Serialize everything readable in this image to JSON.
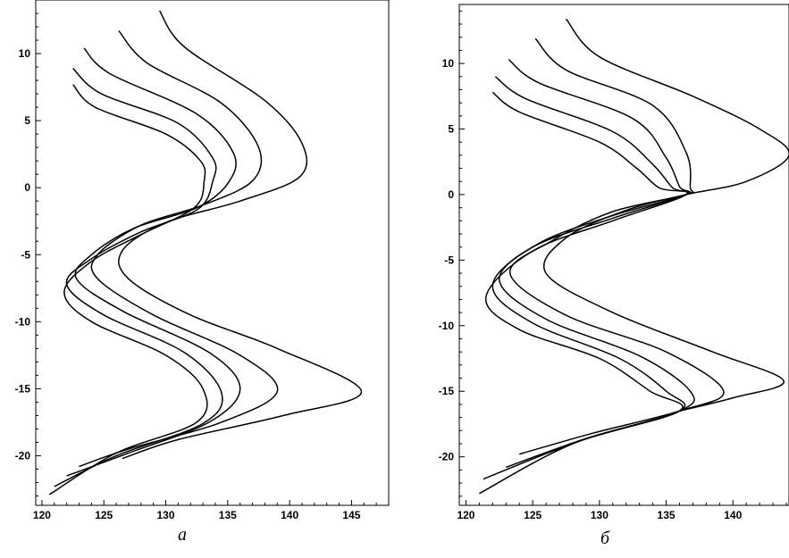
{
  "chart_data": [
    {
      "type": "line",
      "caption": "a",
      "xlim": [
        119.5,
        148
      ],
      "ylim": [
        -23.7,
        14
      ],
      "xticks": [
        120,
        125,
        130,
        135,
        140,
        145
      ],
      "yticks": [
        10,
        5,
        0,
        -5,
        -10,
        -15,
        -20
      ],
      "xtick_labels": [
        "120",
        "125",
        "130",
        "135",
        "140",
        "145"
      ],
      "ytick_labels": [
        "10",
        "5",
        "0",
        "-5",
        "-10",
        "-15",
        "-20"
      ],
      "grid": false,
      "series": [
        {
          "points": [
            [
              122.5,
              7.7
            ],
            [
              124.3,
              6.0
            ],
            [
              130.0,
              4.0
            ],
            [
              132.8,
              2.0
            ],
            [
              133.1,
              0.5
            ],
            [
              132.3,
              -1.5
            ],
            [
              128.0,
              -3.5
            ],
            [
              124.0,
              -5.5
            ],
            [
              121.8,
              -7.8
            ],
            [
              124.0,
              -10.0
            ],
            [
              130.0,
              -12.5
            ],
            [
              133.0,
              -15.0
            ],
            [
              132.5,
              -17.5
            ],
            [
              126.0,
              -19.8
            ],
            [
              120.6,
              -22.9
            ]
          ]
        },
        {
          "points": [
            [
              122.5,
              8.9
            ],
            [
              124.8,
              7.0
            ],
            [
              131.0,
              4.8
            ],
            [
              133.8,
              2.2
            ],
            [
              133.8,
              0.5
            ],
            [
              132.6,
              -1.6
            ],
            [
              128.0,
              -3.3
            ],
            [
              124.0,
              -5.3
            ],
            [
              122.0,
              -7.2
            ],
            [
              125.0,
              -9.5
            ],
            [
              131.5,
              -12.3
            ],
            [
              134.5,
              -15.3
            ],
            [
              133.0,
              -17.6
            ],
            [
              126.0,
              -20.0
            ],
            [
              121.0,
              -22.3
            ]
          ]
        },
        {
          "points": [
            [
              123.4,
              10.4
            ],
            [
              125.5,
              8.5
            ],
            [
              132.5,
              5.5
            ],
            [
              135.5,
              2.5
            ],
            [
              135.0,
              0.3
            ],
            [
              132.5,
              -1.5
            ],
            [
              127.5,
              -3.0
            ],
            [
              124.0,
              -5.0
            ],
            [
              122.8,
              -6.8
            ],
            [
              126.5,
              -9.2
            ],
            [
              133.5,
              -12.3
            ],
            [
              136.0,
              -15.0
            ],
            [
              133.5,
              -17.5
            ],
            [
              127.0,
              -19.8
            ],
            [
              122.0,
              -21.5
            ]
          ]
        },
        {
          "points": [
            [
              126.2,
              11.7
            ],
            [
              128.5,
              9.3
            ],
            [
              134.5,
              6.3
            ],
            [
              137.5,
              3.0
            ],
            [
              137.0,
              0.5
            ],
            [
              133.0,
              -1.3
            ],
            [
              128.0,
              -2.8
            ],
            [
              124.5,
              -5.0
            ],
            [
              124.5,
              -6.8
            ],
            [
              129.0,
              -9.5
            ],
            [
              136.0,
              -12.5
            ],
            [
              139.0,
              -15.2
            ],
            [
              134.5,
              -17.5
            ],
            [
              127.0,
              -19.5
            ],
            [
              123.0,
              -20.8
            ]
          ]
        },
        {
          "points": [
            [
              129.5,
              13.2
            ],
            [
              131.5,
              10.5
            ],
            [
              138.0,
              6.5
            ],
            [
              141.0,
              3.3
            ],
            [
              140.8,
              0.8
            ],
            [
              136.0,
              -1.0
            ],
            [
              130.0,
              -2.6
            ],
            [
              126.5,
              -4.7
            ],
            [
              127.0,
              -6.8
            ],
            [
              132.0,
              -9.5
            ],
            [
              139.0,
              -12.0
            ],
            [
              145.8,
              -15.2
            ],
            [
              139.5,
              -17.0
            ],
            [
              131.0,
              -18.8
            ],
            [
              126.5,
              -20.2
            ]
          ]
        }
      ]
    },
    {
      "type": "line",
      "caption": "б",
      "xlim": [
        119.5,
        144.2
      ],
      "ylim": [
        -23.7,
        14.5
      ],
      "xticks": [
        120,
        125,
        130,
        135,
        140
      ],
      "yticks": [
        10,
        5,
        0,
        -5,
        -10,
        -15,
        -20
      ],
      "xtick_labels": [
        "120",
        "125",
        "130",
        "135",
        "140"
      ],
      "ytick_labels": [
        "10",
        "5",
        "0",
        "-5",
        "-10",
        "-15",
        "-20"
      ],
      "grid": false,
      "series": [
        {
          "points": [
            [
              122.0,
              7.8
            ],
            [
              124.0,
              6.3
            ],
            [
              130.0,
              4.0
            ],
            [
              132.8,
              2.0
            ],
            [
              134.5,
              0.5
            ],
            [
              136.5,
              0.0
            ],
            [
              131.0,
              -2.0
            ],
            [
              125.0,
              -4.3
            ],
            [
              121.5,
              -7.8
            ],
            [
              124.0,
              -10.3
            ],
            [
              130.0,
              -12.5
            ],
            [
              133.8,
              -15.0
            ],
            [
              136.0,
              -16.5
            ],
            [
              128.0,
              -19.0
            ],
            [
              121.0,
              -22.8
            ]
          ]
        },
        {
          "points": [
            [
              122.2,
              9.0
            ],
            [
              124.5,
              7.3
            ],
            [
              131.0,
              4.8
            ],
            [
              134.0,
              2.3
            ],
            [
              135.5,
              0.5
            ],
            [
              136.5,
              0.0
            ],
            [
              131.0,
              -1.8
            ],
            [
              125.0,
              -4.0
            ],
            [
              122.0,
              -7.0
            ],
            [
              125.0,
              -9.8
            ],
            [
              131.5,
              -12.5
            ],
            [
              135.0,
              -15.0
            ],
            [
              136.0,
              -16.5
            ],
            [
              128.5,
              -18.8
            ],
            [
              121.3,
              -21.7
            ]
          ]
        },
        {
          "points": [
            [
              123.2,
              10.3
            ],
            [
              125.5,
              8.5
            ],
            [
              132.5,
              5.8
            ],
            [
              135.0,
              2.8
            ],
            [
              136.0,
              0.6
            ],
            [
              136.5,
              0.0
            ],
            [
              131.0,
              -1.6
            ],
            [
              125.5,
              -3.7
            ],
            [
              122.5,
              -6.5
            ],
            [
              126.0,
              -9.5
            ],
            [
              133.0,
              -12.3
            ],
            [
              136.8,
              -15.0
            ],
            [
              136.0,
              -16.5
            ],
            [
              129.0,
              -18.6
            ],
            [
              123.0,
              -20.8
            ]
          ]
        },
        {
          "points": [
            [
              125.2,
              11.9
            ],
            [
              127.5,
              9.5
            ],
            [
              134.0,
              6.8
            ],
            [
              136.5,
              3.2
            ],
            [
              136.8,
              0.6
            ],
            [
              136.5,
              0.0
            ],
            [
              131.0,
              -1.3
            ],
            [
              126.5,
              -3.5
            ],
            [
              123.3,
              -6.0
            ],
            [
              127.5,
              -9.2
            ],
            [
              135.0,
              -12.0
            ],
            [
              139.3,
              -15.0
            ],
            [
              136.0,
              -16.5
            ],
            [
              129.5,
              -18.2
            ],
            [
              124.0,
              -19.8
            ]
          ]
        },
        {
          "points": [
            [
              127.5,
              13.4
            ],
            [
              130.0,
              10.5
            ],
            [
              137.0,
              7.5
            ],
            [
              142.0,
              5.0
            ],
            [
              144.2,
              3.0
            ],
            [
              141.0,
              1.0
            ],
            [
              136.5,
              0.0
            ],
            [
              132.0,
              -1.2
            ],
            [
              127.5,
              -3.3
            ],
            [
              126.0,
              -6.0
            ],
            [
              131.0,
              -9.0
            ],
            [
              138.5,
              -12.0
            ],
            [
              143.8,
              -14.2
            ],
            [
              140.0,
              -15.5
            ],
            [
              136.0,
              -16.5
            ]
          ]
        }
      ]
    }
  ]
}
